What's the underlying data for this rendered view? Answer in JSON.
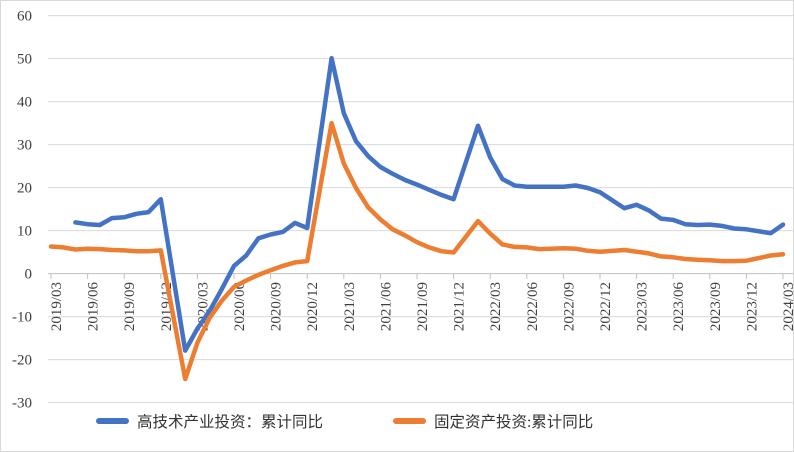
{
  "chart_data": {
    "type": "line",
    "title": "",
    "grid": "horizontal",
    "legend_position": "bottom",
    "ylim": [
      -30,
      60
    ],
    "ytick_step": 10,
    "x_label_every": 3,
    "y_tick_labels": [
      "60",
      "50",
      "40",
      "30",
      "20",
      "10",
      "0",
      "-10",
      "-20",
      "-30"
    ],
    "x_tick_labels": [
      "2019/03",
      "2019/06",
      "2019/09",
      "2019/12",
      "2020/03",
      "2020/06",
      "2020/09",
      "2020/12",
      "2021/03",
      "2021/06",
      "2021/09",
      "2021/12",
      "2022/03",
      "2022/06",
      "2022/09",
      "2022/12",
      "2023/03",
      "2023/06",
      "2023/09",
      "2023/12",
      "2024/03"
    ],
    "categories": [
      "2019/03",
      "2019/04",
      "2019/05",
      "2019/06",
      "2019/07",
      "2019/08",
      "2019/09",
      "2019/10",
      "2019/11",
      "2019/12",
      "2020/01",
      "2020/02",
      "2020/03",
      "2020/04",
      "2020/05",
      "2020/06",
      "2020/07",
      "2020/08",
      "2020/09",
      "2020/10",
      "2020/11",
      "2020/12",
      "2021/01",
      "2021/02",
      "2021/03",
      "2021/04",
      "2021/05",
      "2021/06",
      "2021/07",
      "2021/08",
      "2021/09",
      "2021/10",
      "2021/11",
      "2021/12",
      "2022/01",
      "2022/02",
      "2022/03",
      "2022/04",
      "2022/05",
      "2022/06",
      "2022/07",
      "2022/08",
      "2022/09",
      "2022/10",
      "2022/11",
      "2022/12",
      "2023/01",
      "2023/02",
      "2023/03",
      "2023/04",
      "2023/05",
      "2023/06",
      "2023/07",
      "2023/08",
      "2023/09",
      "2023/10",
      "2023/11",
      "2023/12",
      "2024/01",
      "2024/02",
      "2024/03"
    ],
    "series": [
      {
        "name": "高技术产业投资：累计同比",
        "color": "#4472C4",
        "values": [
          null,
          null,
          11.9,
          11.5,
          11.3,
          12.9,
          13.1,
          13.9,
          14.3,
          17.3,
          null,
          -17.9,
          -12.8,
          -8.7,
          -3.6,
          1.8,
          4.2,
          8.2,
          9.1,
          9.7,
          11.8,
          10.6,
          null,
          50.1,
          37.3,
          30.8,
          27.3,
          24.8,
          23.2,
          21.8,
          20.7,
          19.5,
          18.3,
          17.3,
          null,
          34.4,
          27.0,
          22.0,
          20.5,
          20.2,
          20.2,
          20.2,
          20.2,
          20.5,
          19.9,
          18.9,
          null,
          15.2,
          16.0,
          14.7,
          12.8,
          12.5,
          11.5,
          11.3,
          11.4,
          11.1,
          10.5,
          10.3,
          null,
          9.4,
          11.4
        ]
      },
      {
        "name": "固定资产投资:累计同比",
        "color": "#ED7D31",
        "values": [
          6.3,
          6.1,
          5.6,
          5.8,
          5.7,
          5.5,
          5.4,
          5.2,
          5.2,
          5.4,
          null,
          -24.5,
          -16.1,
          -10.3,
          -6.3,
          -3.1,
          -1.6,
          -0.3,
          0.8,
          1.8,
          2.6,
          2.9,
          null,
          35.0,
          25.6,
          19.9,
          15.4,
          12.6,
          10.3,
          8.9,
          7.3,
          6.1,
          5.2,
          4.9,
          null,
          12.2,
          9.3,
          6.8,
          6.2,
          6.1,
          5.7,
          5.8,
          5.9,
          5.8,
          5.3,
          5.1,
          null,
          5.5,
          5.1,
          4.7,
          4.0,
          3.8,
          3.4,
          3.2,
          3.1,
          2.9,
          2.9,
          3.0,
          null,
          4.2,
          4.5
        ]
      }
    ]
  }
}
